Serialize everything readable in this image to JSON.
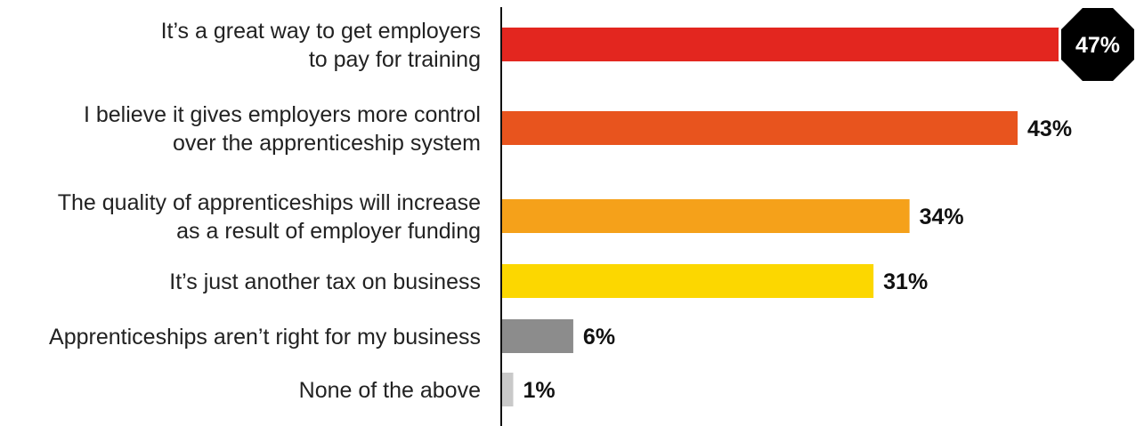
{
  "chart_data": {
    "type": "bar",
    "orientation": "horizontal",
    "categories": [
      [
        "It’s a great way to get employers",
        "to pay for training"
      ],
      [
        "I believe it gives employers more control",
        "over the apprenticeship system"
      ],
      [
        "The quality of apprenticeships will increase",
        "as a result of employer funding"
      ],
      [
        "It’s just another tax on business"
      ],
      [
        "Apprenticeships aren’t right for my business"
      ],
      [
        "None of the above"
      ]
    ],
    "values": [
      47,
      43,
      34,
      31,
      6,
      1
    ],
    "value_labels": [
      "47%",
      "43%",
      "34%",
      "31%",
      "6%",
      "1%"
    ],
    "colors": [
      "#e3261f",
      "#e8541e",
      "#f5a11a",
      "#fcd700",
      "#8c8c8c",
      "#c9c9c9"
    ],
    "highlight_index": 0,
    "highlight_color": "#000000",
    "xlim": [
      0,
      50
    ],
    "grid": false,
    "legend": "none",
    "title": "",
    "xlabel": "",
    "ylabel": ""
  }
}
